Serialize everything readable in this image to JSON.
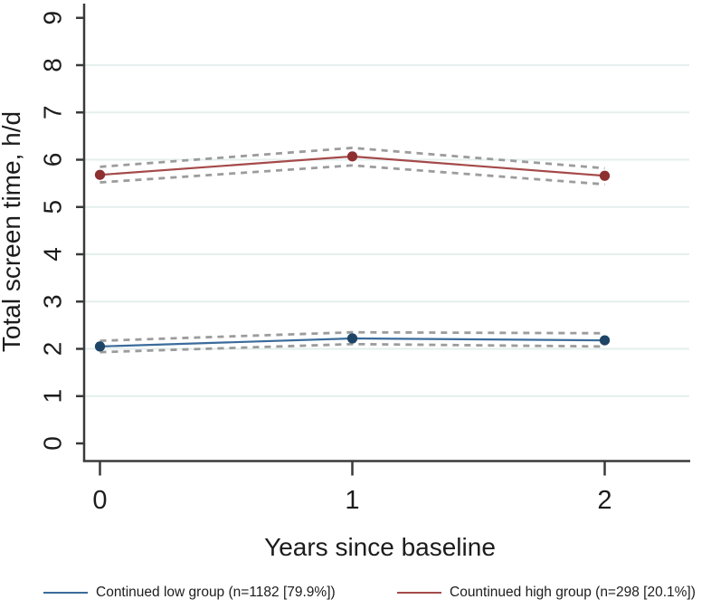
{
  "chart_data": {
    "type": "line",
    "title": "",
    "xlabel": "Years since baseline",
    "ylabel": "Total screen time, h/d",
    "x": [
      0,
      1,
      2
    ],
    "xtick_labels": [
      "0",
      "1",
      "2"
    ],
    "yticks": [
      0,
      1,
      2,
      3,
      4,
      5,
      6,
      7,
      8,
      9
    ],
    "grid_levels": [
      1,
      2,
      3,
      4,
      5,
      6,
      7,
      8
    ],
    "ylim": [
      0,
      9.3
    ],
    "grid": "horizontal pale lines",
    "legend_position": "bottom",
    "series": [
      {
        "name": "Continued low group (n=1182 [79.9%])",
        "line_color": "#3A6B9B",
        "marker_color": "#1E4466",
        "values": [
          2.05,
          2.22,
          2.18
        ],
        "ci_upper": [
          2.17,
          2.35,
          2.33
        ],
        "ci_lower": [
          1.93,
          2.1,
          2.05
        ]
      },
      {
        "name": "Countinued high group (n=298 [20.1%])",
        "line_color": "#A54A4A",
        "marker_color": "#8E2F31",
        "values": [
          5.68,
          6.07,
          5.66
        ],
        "ci_upper": [
          5.85,
          6.25,
          5.82
        ],
        "ci_lower": [
          5.52,
          5.88,
          5.48
        ]
      }
    ],
    "ci_style": {
      "color": "#9C9C9C",
      "dash": "dashed"
    },
    "colors": {
      "axis": "#3a3a3a",
      "gridline": "#e4efee",
      "text": "#1c1c1c"
    }
  }
}
